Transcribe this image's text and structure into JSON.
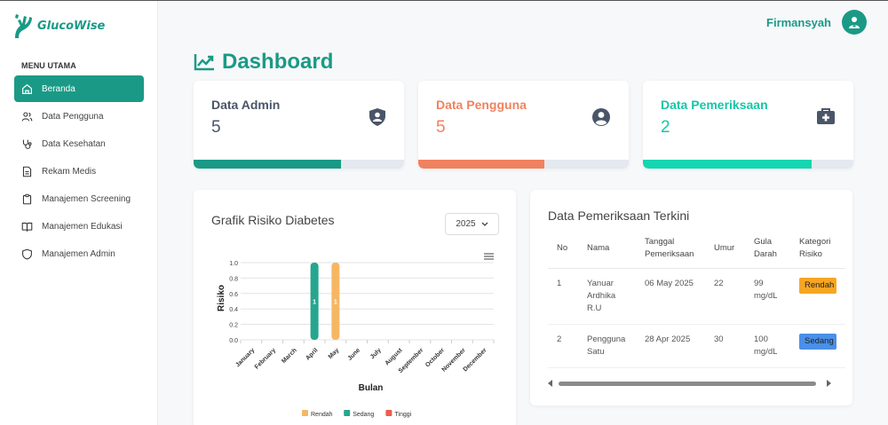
{
  "app": {
    "name": "GlucoWise"
  },
  "user": {
    "name": "Firmansyah"
  },
  "sidebar": {
    "heading": "MENU UTAMA",
    "items": [
      {
        "label": "Beranda",
        "icon": "home-icon",
        "active": true
      },
      {
        "label": "Data Pengguna",
        "icon": "users-icon"
      },
      {
        "label": "Data Kesehatan",
        "icon": "stethoscope-icon"
      },
      {
        "label": "Rekam Medis",
        "icon": "document-icon"
      },
      {
        "label": "Manajemen Screening",
        "icon": "clipboard-icon"
      },
      {
        "label": "Manajemen Edukasi",
        "icon": "book-icon"
      },
      {
        "label": "Manajemen Admin",
        "icon": "shield-icon"
      }
    ]
  },
  "page": {
    "title": "Dashboard"
  },
  "cards": [
    {
      "title": "Data Admin",
      "value": "5",
      "color": "#4a5568",
      "bar_color": "#1a9a86",
      "progress": 0.7,
      "icon": "user-shield-icon"
    },
    {
      "title": "Data Pengguna",
      "value": "5",
      "color": "#f0825f",
      "bar_color": "#f0825f",
      "progress": 0.6,
      "icon": "user-circle-icon"
    },
    {
      "title": "Data Pemeriksaan",
      "value": "2",
      "color": "#15c6a6",
      "bar_color": "#15d6b1",
      "progress": 0.8,
      "icon": "medical-kit-icon"
    }
  ],
  "chart_panel": {
    "title": "Grafik Risiko Diabetes",
    "year": "2025"
  },
  "chart_data": {
    "type": "bar",
    "categories": [
      "January",
      "February",
      "March",
      "April",
      "May",
      "June",
      "July",
      "August",
      "September",
      "October",
      "November",
      "December"
    ],
    "series": [
      {
        "name": "Rendah",
        "color": "#f6b765",
        "values": [
          0,
          0,
          0,
          0,
          1,
          0,
          0,
          0,
          0,
          0,
          0,
          0
        ]
      },
      {
        "name": "Sedang",
        "color": "#26a68f",
        "values": [
          0,
          0,
          0,
          1,
          0,
          0,
          0,
          0,
          0,
          0,
          0,
          0
        ]
      },
      {
        "name": "Tinggi",
        "color": "#ef5b4d",
        "values": [
          0,
          0,
          0,
          0,
          0,
          0,
          0,
          0,
          0,
          0,
          0,
          0
        ]
      }
    ],
    "ylabel": "Risiko",
    "xlabel": "Bulan",
    "ylim": [
      0,
      1
    ],
    "yticks": [
      "0.0",
      "0.2",
      "0.4",
      "0.6",
      "0.8",
      "1.0"
    ],
    "legend": "bottom"
  },
  "table_panel": {
    "title": "Data Pemeriksaan Terkini",
    "columns": [
      {
        "key": "no",
        "label": "No"
      },
      {
        "key": "nama",
        "label": "Nama"
      },
      {
        "key": "tanggal",
        "label": "Tanggal Pemeriksaan"
      },
      {
        "key": "umur",
        "label": "Umur"
      },
      {
        "key": "gula",
        "label": "Gula Darah"
      },
      {
        "key": "kategori",
        "label": "Kategori Risiko"
      }
    ],
    "rows": [
      {
        "no": "1",
        "nama": "Yanuar Ardhika R.U",
        "tanggal": "06 May 2025",
        "umur": "22",
        "gula": "99 mg/dL",
        "kategori": "Rendah",
        "kategori_color": "#f6a623"
      },
      {
        "no": "2",
        "nama": "Pengguna Satu",
        "tanggal": "28 Apr 2025",
        "umur": "30",
        "gula": "100 mg/dL",
        "kategori": "Sedang",
        "kategori_color": "#4a8fe8"
      }
    ]
  }
}
